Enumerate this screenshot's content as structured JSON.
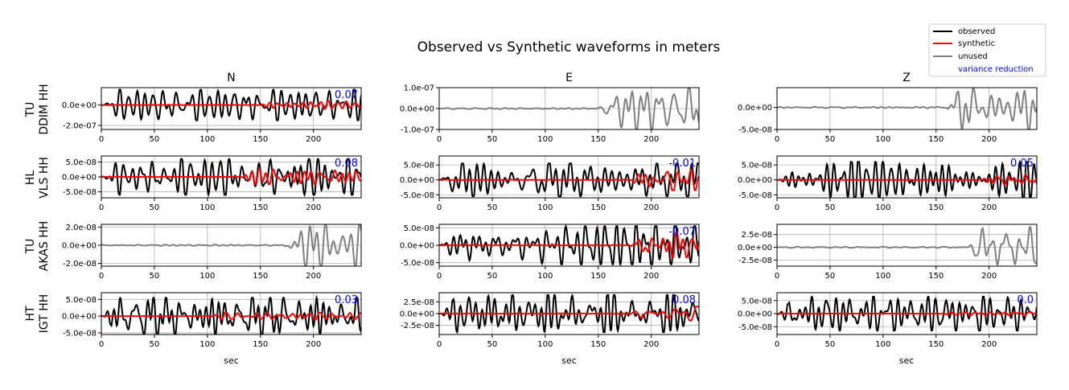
{
  "title": "Observed vs Synthetic waveforms in meters",
  "legend": {
    "placement": "top-right",
    "entries": [
      {
        "label": "observed",
        "color": "#000000"
      },
      {
        "label": "synthetic",
        "color": "#ff0000"
      },
      {
        "label": "unused",
        "color": "#808080"
      },
      {
        "label": "variance reduction",
        "color": "#0000ff"
      }
    ]
  },
  "columns": [
    "N",
    "E",
    "Z"
  ],
  "stations": [
    {
      "network": "TU",
      "code": "DDIM HH"
    },
    {
      "network": "HL",
      "code": "VLS HH"
    },
    {
      "network": "TU",
      "code": "AKAS HH"
    },
    {
      "network": "HT",
      "code": "IGT HH"
    }
  ],
  "chart_data": {
    "type": "line",
    "title": "Observed vs Synthetic waveforms in meters",
    "xlabel": "sec",
    "xlim": [
      0,
      245
    ],
    "xticks": [
      0,
      50,
      100,
      150,
      200
    ],
    "grid": true,
    "legend_placement": "top-right",
    "series_names": [
      "observed",
      "synthetic",
      "unused",
      "variance reduction"
    ],
    "panels": [
      {
        "row": 0,
        "col": 0,
        "status": "used",
        "ylim": [
          -2.4e-07,
          1.7e-07
        ],
        "yticks": [
          0,
          -2e-07
        ],
        "ytick_labels": [
          "0.0e+00",
          "-2.0e-07"
        ],
        "vr_label": "0.07",
        "obs_amp": 1.5e-07,
        "syn_amp": 4e-08,
        "syn_start": 150,
        "seed": 11
      },
      {
        "row": 0,
        "col": 1,
        "status": "unused",
        "ylim": [
          -1e-07,
          1e-07
        ],
        "yticks": [
          1e-07,
          0,
          -1e-07
        ],
        "ytick_labels": [
          "1.0e-07",
          "0.0e+00",
          "-1.0e-07"
        ],
        "vr_label": "",
        "unused_amp": 1e-07,
        "unused_start": 150,
        "seed": 12
      },
      {
        "row": 0,
        "col": 2,
        "status": "unused",
        "ylim": [
          -5e-08,
          4.5e-08
        ],
        "yticks": [
          0,
          -5e-08
        ],
        "ytick_labels": [
          "0.0e+00",
          "-5.0e-08"
        ],
        "vr_label": "",
        "unused_amp": 5e-08,
        "unused_start": 160,
        "seed": 13
      },
      {
        "row": 1,
        "col": 0,
        "status": "used",
        "ylim": [
          -7e-08,
          7e-08
        ],
        "yticks": [
          5e-08,
          0,
          -5e-08
        ],
        "ytick_labels": [
          "5.0e-08",
          "0.0e+00",
          "-5.0e-08"
        ],
        "vr_label": "0.08",
        "obs_amp": 6e-08,
        "syn_amp": 2.5e-08,
        "syn_start": 130,
        "seed": 21
      },
      {
        "row": 1,
        "col": 1,
        "status": "used",
        "ylim": [
          -6e-08,
          8e-08
        ],
        "yticks": [
          5e-08,
          0,
          -5e-08
        ],
        "ytick_labels": [
          "5.0e-08",
          "0.0e+00",
          "-5.0e-08"
        ],
        "vr_label": "-0.01",
        "obs_amp": 5.5e-08,
        "syn_amp": 3.5e-08,
        "syn_start": 180,
        "seed": 22
      },
      {
        "row": 1,
        "col": 2,
        "status": "used",
        "ylim": [
          -6e-08,
          8e-08
        ],
        "yticks": [
          5e-08,
          0,
          -5e-08
        ],
        "ytick_labels": [
          "5.0e-08",
          "0.0e+00",
          "-5.0e-08"
        ],
        "vr_label": "0.05",
        "obs_amp": 6e-08,
        "syn_amp": 2e-08,
        "syn_start": 190,
        "seed": 23
      },
      {
        "row": 2,
        "col": 0,
        "status": "unused",
        "ylim": [
          -2.3e-08,
          2.3e-08
        ],
        "yticks": [
          2e-08,
          0,
          -2e-08
        ],
        "ytick_labels": [
          "2.0e-08",
          "0.0e+00",
          "-2.0e-08"
        ],
        "vr_label": "",
        "unused_amp": 2.2e-08,
        "unused_start": 170,
        "seed": 31
      },
      {
        "row": 2,
        "col": 1,
        "status": "used",
        "ylim": [
          -6e-08,
          6e-08
        ],
        "yticks": [
          5e-08,
          0,
          -5e-08
        ],
        "ytick_labels": [
          "5.0e-08",
          "0.0e+00",
          "-5.0e-08"
        ],
        "vr_label": "-0.07",
        "obs_amp": 5.5e-08,
        "syn_amp": 3.5e-08,
        "syn_start": 180,
        "seed": 32
      },
      {
        "row": 2,
        "col": 2,
        "status": "unused",
        "ylim": [
          -3.7e-08,
          4.5e-08
        ],
        "yticks": [
          2.5e-08,
          0,
          -2.5e-08
        ],
        "ytick_labels": [
          "2.5e-08",
          "0.0e+00",
          "-2.5e-08"
        ],
        "vr_label": "",
        "unused_amp": 4e-08,
        "unused_start": 180,
        "seed": 33
      },
      {
        "row": 3,
        "col": 0,
        "status": "used",
        "ylim": [
          -5.5e-08,
          7e-08
        ],
        "yticks": [
          5e-08,
          0,
          -5e-08
        ],
        "ytick_labels": [
          "5.0e-08",
          "0.0e+00",
          "-5.0e-08"
        ],
        "vr_label": "0.03",
        "obs_amp": 5.5e-08,
        "syn_amp": 1e-08,
        "syn_start": 100,
        "seed": 41
      },
      {
        "row": 3,
        "col": 1,
        "status": "used",
        "ylim": [
          -4.5e-08,
          4.5e-08
        ],
        "yticks": [
          2.5e-08,
          0,
          -2.5e-08
        ],
        "ytick_labels": [
          "2.5e-08",
          "0.0e+00",
          "-2.5e-08"
        ],
        "vr_label": "0.08",
        "obs_amp": 4e-08,
        "syn_amp": 1.5e-08,
        "syn_start": 180,
        "seed": 42
      },
      {
        "row": 3,
        "col": 2,
        "status": "used",
        "ylim": [
          -8e-08,
          8e-08
        ],
        "yticks": [
          5e-08,
          0,
          -5e-08
        ],
        "ytick_labels": [
          "5.0e-08",
          "0.0e+00",
          "-5.0e-08"
        ],
        "vr_label": "0.0",
        "obs_amp": 6.5e-08,
        "syn_amp": 1e-08,
        "syn_start": 150,
        "seed": 43
      }
    ]
  }
}
